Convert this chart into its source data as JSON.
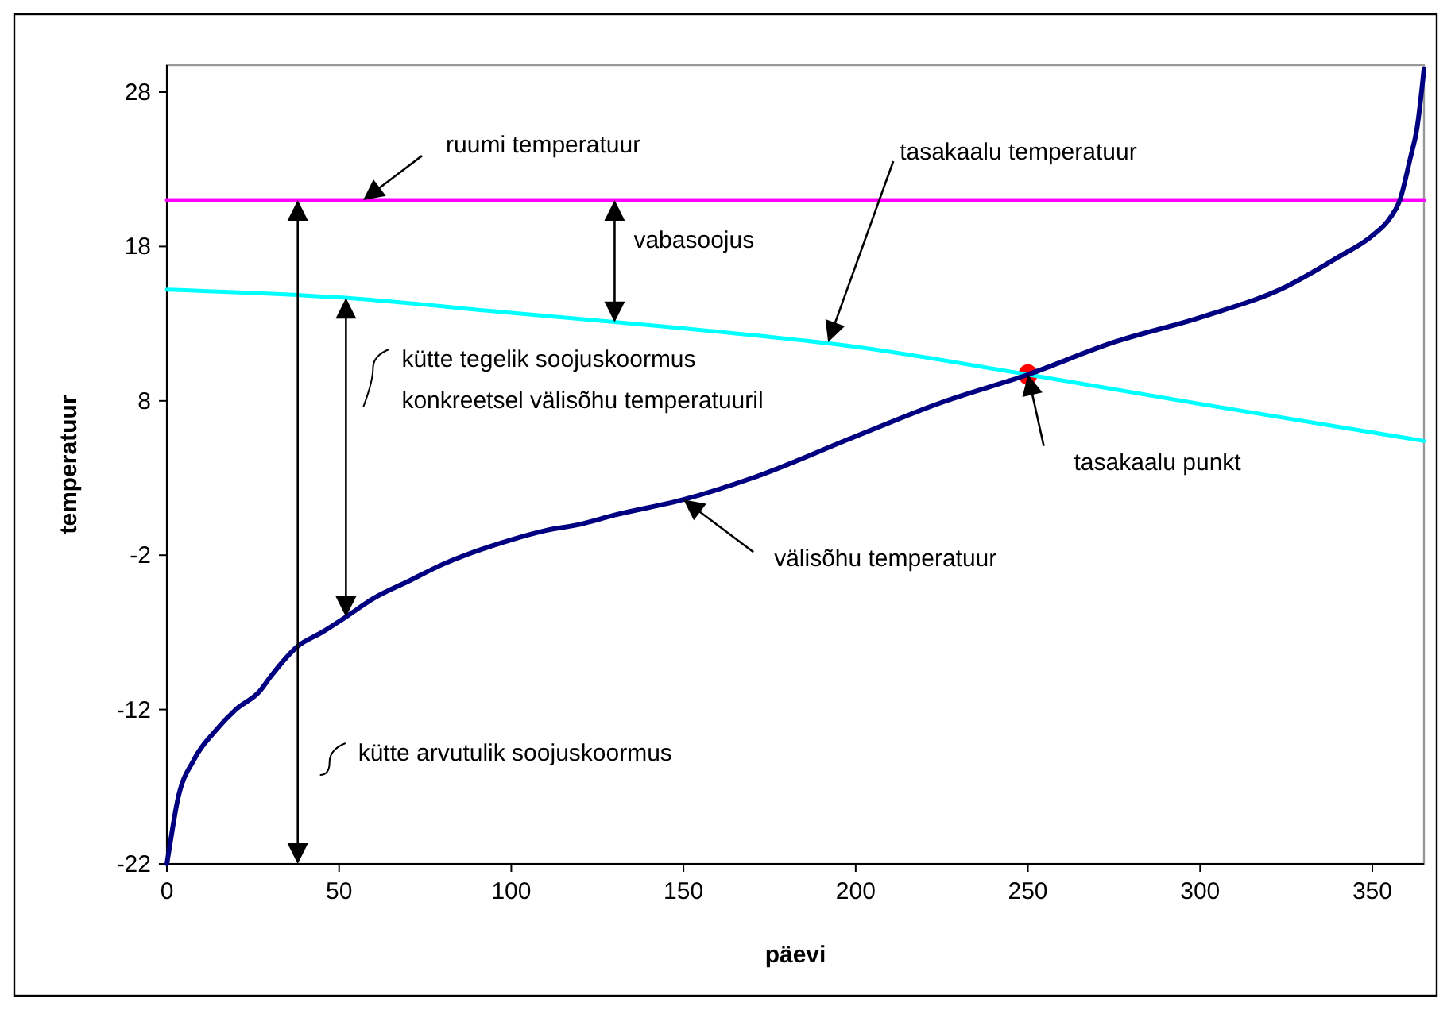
{
  "chart_data": {
    "type": "line",
    "xlabel": "päevi",
    "ylabel": "temperatuur",
    "xlim": [
      0,
      365
    ],
    "ylim": [
      -22,
      29.75
    ],
    "xticks": [
      0,
      50,
      100,
      150,
      200,
      250,
      300,
      350
    ],
    "yticks": [
      -22,
      -12,
      -2,
      8,
      18,
      28
    ],
    "grid": false,
    "marker": "none",
    "line_style": "solid",
    "series": [
      {
        "color": "#ff00ff",
        "x": [
          0,
          365
        ],
        "values": [
          21,
          21
        ]
      },
      {
        "color": "#00ffff",
        "x": [
          0,
          50,
          100,
          150,
          200,
          250,
          300,
          365
        ],
        "values": [
          15.2,
          14.7,
          13.7,
          12.7,
          11.5,
          9.7,
          7.8,
          5.4
        ]
      },
      {
        "color": "#000080",
        "x": [
          0,
          1,
          3,
          8,
          14,
          20,
          27,
          30,
          38,
          45,
          52,
          60,
          70,
          80,
          100,
          110,
          120,
          130,
          150,
          170,
          200,
          225,
          250,
          275,
          300,
          325,
          340,
          350,
          355,
          358,
          361,
          363,
          365
        ],
        "values": [
          -22,
          -20.6,
          -18,
          -15.2,
          -13.4,
          -12,
          -10.8,
          -9.9,
          -7.9,
          -7,
          -6,
          -4.8,
          -3.7,
          -2.6,
          -1,
          -0.4,
          0,
          0.6,
          1.6,
          3.0,
          5.7,
          7.9,
          9.7,
          11.8,
          13.4,
          15.4,
          17.3,
          18.7,
          19.8,
          21,
          23.7,
          25.7,
          29.5
        ]
      },
      {
        "type": "scatter",
        "color": "#ff0000",
        "marker": "circle",
        "x": [
          250
        ],
        "values": [
          9.7
        ]
      }
    ],
    "annotations": [
      "vabasoojus",
      "kütte tegelik soojuskoormus\nkonkreetsel välisõhu temperatuuril",
      "kütte arvutulik soojuskoormus",
      {
        "text": "ruumi temperatuur",
        "x": 57,
        "y": 21
      },
      {
        "text": "tasakaalu temperatuur",
        "x": 192,
        "y": 11.8
      },
      {
        "text": "välisõhu temperatuur",
        "x": 150,
        "y": 1.6
      },
      {
        "text": "tasakaalu punkt",
        "x": 250,
        "y": 9.7
      }
    ]
  }
}
